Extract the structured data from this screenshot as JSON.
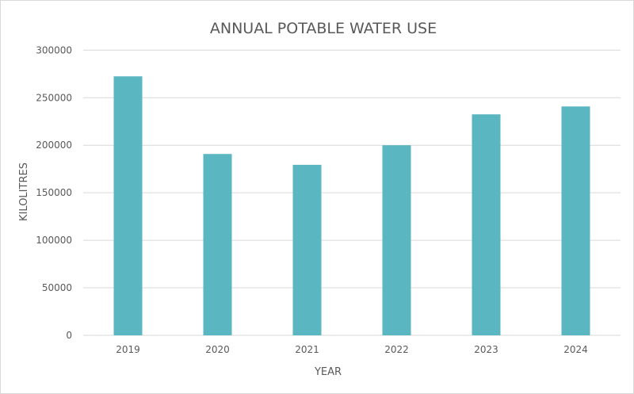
{
  "chart_data": {
    "type": "bar",
    "title": "ANNUAL POTABLE WATER USE",
    "xlabel": "YEAR",
    "ylabel": "KILOLITRES",
    "categories": [
      "2019",
      "2020",
      "2021",
      "2022",
      "2023",
      "2024"
    ],
    "values": [
      272500,
      190800,
      179400,
      200000,
      232500,
      240800
    ],
    "ylim": [
      0,
      300000
    ],
    "yticks": [
      0,
      50000,
      100000,
      150000,
      200000,
      250000,
      300000
    ],
    "grid": true,
    "legend": "none",
    "colors": {
      "bar": "#5ab6c0",
      "grid": "#d9d9d9",
      "text": "#595959"
    }
  }
}
